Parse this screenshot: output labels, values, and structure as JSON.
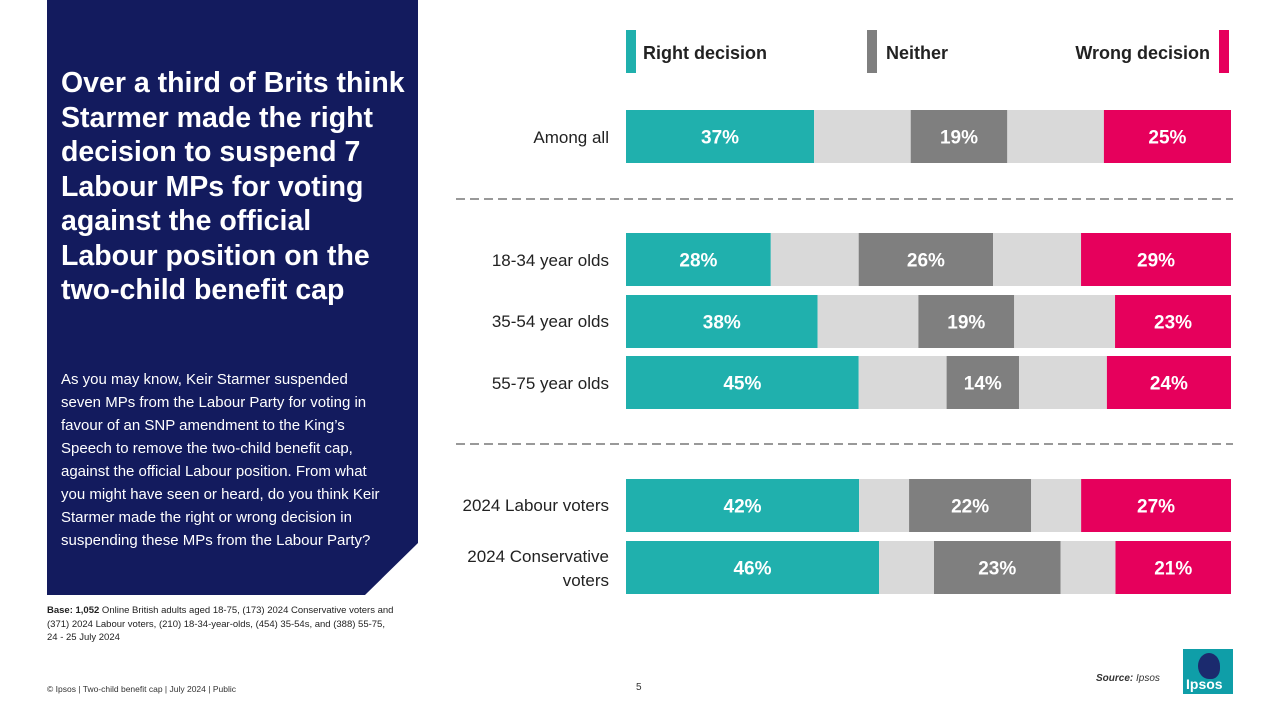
{
  "headline": "Over a third of Brits think Starmer made the right decision to suspend 7 Labour MPs for voting against the official Labour position on the two-child benefit cap",
  "question": "As you may know, Keir Starmer suspended seven MPs from the Labour Party for voting in favour of an SNP amendment to the King’s Speech to remove the two-child benefit cap, against the official Labour position.  From what you might have seen or heard, do you think Keir Starmer made the right or wrong decision in suspending these MPs from the Labour Party?",
  "base": {
    "label": "Base: 1,052",
    "text": " Online British adults aged 18-75, (173) 2024 Conservative voters and (371) 2024 Labour voters, (210) 18-34-year-olds, (454) 35-54s, and (388) 55-75, 24 - 25 July 2024"
  },
  "footer": {
    "left": "© Ipsos  |  Two-child benefit cap  |  July 2024  |  Public",
    "page": "5",
    "source_label": "Source:",
    "source_value": "Ipsos"
  },
  "logo": {
    "text": "Ipsos"
  },
  "colors": {
    "navy": "#131b5e",
    "right": "#20b0ad",
    "neither": "#7f7f7f",
    "wrong": "#e6005c",
    "dont_know": "#d9d9d9"
  },
  "chart_data": {
    "type": "bar",
    "orientation": "horizontal",
    "stacked": true,
    "legend": [
      "Right decision",
      "Neither",
      "Wrong decision"
    ],
    "legend_position": "top",
    "xlim": [
      0,
      100
    ],
    "categories": [
      "Among all",
      "18-34 year olds",
      "35-54 year olds",
      "55-75 year olds",
      "2024 Labour voters",
      "2024 Conservative voters"
    ],
    "series": [
      {
        "name": "Right decision",
        "values": [
          37,
          28,
          38,
          45,
          42,
          46
        ]
      },
      {
        "name": "Neither",
        "values": [
          19,
          26,
          19,
          14,
          22,
          23
        ]
      },
      {
        "name": "Wrong decision",
        "values": [
          25,
          29,
          23,
          24,
          27,
          21
        ]
      }
    ],
    "unlabelled_remainder_values": [
      19,
      17,
      20,
      17,
      9,
      10
    ],
    "data_labels": [
      [
        "37%",
        "19%",
        "25%"
      ],
      [
        "28%",
        "26%",
        "29%"
      ],
      [
        "38%",
        "19%",
        "23%"
      ],
      [
        "45%",
        "14%",
        "24%"
      ],
      [
        "42%",
        "22%",
        "27%"
      ],
      [
        "46%",
        "23%",
        "21%"
      ]
    ]
  }
}
